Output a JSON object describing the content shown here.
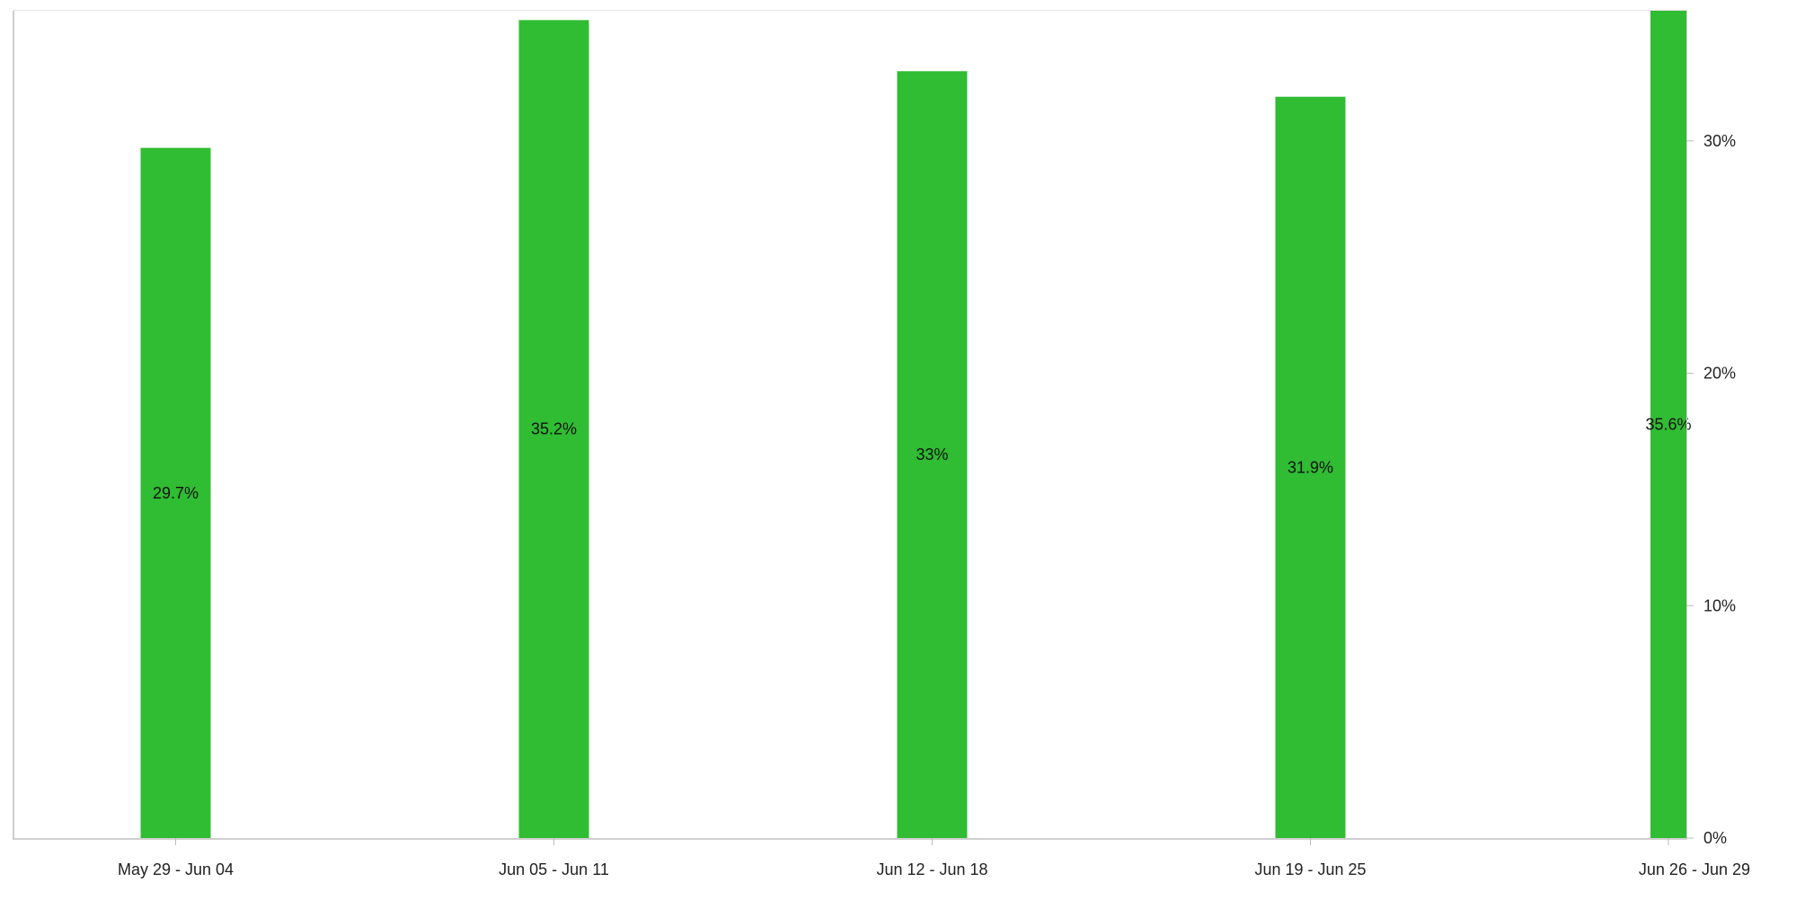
{
  "chart_data": {
    "type": "bar",
    "categories": [
      "May 29 - Jun 04",
      "Jun 05 - Jun 11",
      "Jun 12 - Jun 18",
      "Jun 19 - Jun 25",
      "Jun 26 - Jun 29"
    ],
    "values": [
      29.7,
      35.2,
      33,
      31.9,
      35.6
    ],
    "data_labels": [
      "29.7%",
      "35.2%",
      "33%",
      "31.9%",
      "35.6%"
    ],
    "y_axis": {
      "position": "right",
      "ticks": [
        0,
        10,
        20,
        30
      ],
      "tick_labels": [
        "0%",
        "10%",
        "20%",
        "30%"
      ]
    },
    "ylim": [
      0,
      35.6
    ],
    "grid": false,
    "legend": "none",
    "colors": {
      "bar": "#30bc33",
      "axis": "#cccccc"
    }
  }
}
